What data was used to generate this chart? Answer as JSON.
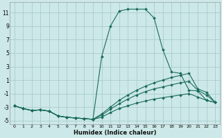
{
  "xlabel": "Humidex (Indice chaleur)",
  "background_color": "#cce8e8",
  "grid_color": "#aacccc",
  "line_color": "#1a6b5a",
  "xlim": [
    -0.5,
    23.5
  ],
  "ylim": [
    -5.5,
    12.5
  ],
  "xticks": [
    0,
    1,
    2,
    3,
    4,
    5,
    6,
    7,
    8,
    9,
    10,
    11,
    12,
    13,
    14,
    15,
    16,
    17,
    18,
    19,
    20,
    21,
    22,
    23
  ],
  "yticks": [
    -5,
    -3,
    -1,
    1,
    3,
    5,
    7,
    9,
    11
  ],
  "curves": [
    {
      "x": [
        0,
        1,
        2,
        3,
        4,
        5,
        6,
        7,
        8,
        9,
        10,
        11,
        12,
        13,
        14,
        15,
        16,
        17,
        18,
        19,
        20,
        21,
        22,
        23
      ],
      "y": [
        -2.8,
        -3.2,
        -3.5,
        -3.4,
        -3.6,
        -4.3,
        -4.5,
        -4.6,
        -4.7,
        -4.8,
        4.5,
        9.0,
        11.2,
        11.5,
        11.5,
        11.5,
        10.2,
        5.5,
        2.2,
        2.0,
        -0.5,
        -0.6,
        -2.0,
        -2.3
      ]
    },
    {
      "x": [
        0,
        1,
        2,
        3,
        4,
        5,
        6,
        7,
        8,
        9,
        10,
        11,
        12,
        13,
        14,
        15,
        16,
        17,
        18,
        19,
        20,
        21,
        22,
        23
      ],
      "y": [
        -2.8,
        -3.2,
        -3.5,
        -3.4,
        -3.6,
        -4.3,
        -4.5,
        -4.6,
        -4.7,
        -4.8,
        -4.0,
        -3.0,
        -2.0,
        -1.2,
        -0.5,
        0.1,
        0.6,
        1.0,
        1.4,
        1.7,
        2.0,
        -0.3,
        -0.8,
        -2.3
      ]
    },
    {
      "x": [
        0,
        1,
        2,
        3,
        4,
        5,
        6,
        7,
        8,
        9,
        10,
        11,
        12,
        13,
        14,
        15,
        16,
        17,
        18,
        19,
        20,
        21,
        22,
        23
      ],
      "y": [
        -2.8,
        -3.2,
        -3.5,
        -3.4,
        -3.6,
        -4.3,
        -4.5,
        -4.6,
        -4.7,
        -4.8,
        -4.2,
        -3.3,
        -2.5,
        -1.8,
        -1.2,
        -0.7,
        -0.3,
        0.0,
        0.3,
        0.6,
        0.8,
        -0.5,
        -1.2,
        -2.3
      ]
    },
    {
      "x": [
        0,
        1,
        2,
        3,
        4,
        5,
        6,
        7,
        8,
        9,
        10,
        11,
        12,
        13,
        14,
        15,
        16,
        17,
        18,
        19,
        20,
        21,
        22,
        23
      ],
      "y": [
        -2.8,
        -3.2,
        -3.5,
        -3.4,
        -3.6,
        -4.3,
        -4.5,
        -4.6,
        -4.7,
        -4.8,
        -4.5,
        -3.8,
        -3.2,
        -2.8,
        -2.4,
        -2.1,
        -1.8,
        -1.6,
        -1.4,
        -1.2,
        -1.0,
        -1.5,
        -2.0,
        -2.3
      ]
    }
  ]
}
